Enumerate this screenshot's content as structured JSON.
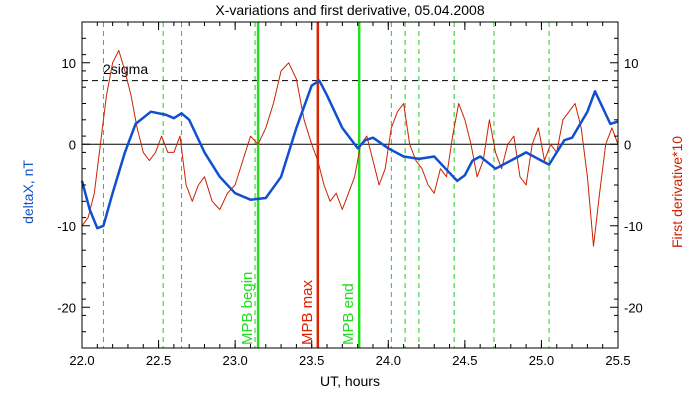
{
  "chart_data": {
    "type": "line",
    "title": "X-variations and first derivative, 05.04.2008",
    "xlabel": "UT, hours",
    "ylabel_left": "deltaX, nT",
    "ylabel_right": "First derivative*10",
    "xlim": [
      22.0,
      25.5
    ],
    "ylim": [
      -25,
      15
    ],
    "x_ticks": [
      22.0,
      22.5,
      23.0,
      23.5,
      24.0,
      24.5,
      25.0,
      25.5
    ],
    "x_tick_labels": [
      "22.0",
      "22.5",
      "23.0",
      "23.5",
      "24.0",
      "24.5",
      "25.0",
      "25.5"
    ],
    "y_ticks": [
      -20,
      -10,
      0,
      10
    ],
    "y_tick_labels": [
      "-20",
      "-10",
      "0",
      "10"
    ],
    "threshold": {
      "label": "2sigma",
      "value": 7.8
    },
    "zero_line": 0,
    "colors": {
      "deltaX": "#1050d0",
      "derivative": "#cc2200",
      "mpb_edge": "#22dd22",
      "mpb_max": "#dd2200",
      "dashed_green": "#22cc22",
      "axis": "#000000"
    },
    "markers": [
      {
        "label": "MPB begin",
        "x": 23.15,
        "color": "#22dd22"
      },
      {
        "label": "MPB max",
        "x": 23.54,
        "color": "#dd2200"
      },
      {
        "label": "MPB end",
        "x": 23.81,
        "color": "#22dd22"
      }
    ],
    "dashed_lines_x": [
      22.14,
      22.53,
      22.65,
      23.13,
      24.02,
      24.11,
      24.2,
      24.43,
      24.69,
      25.05
    ],
    "series": [
      {
        "key": "deltaX",
        "x": [
          22.0,
          22.05,
          22.1,
          22.14,
          22.2,
          22.28,
          22.35,
          22.45,
          22.55,
          22.6,
          22.65,
          22.7,
          22.8,
          22.9,
          23.0,
          23.1,
          23.2,
          23.3,
          23.4,
          23.5,
          23.55,
          23.6,
          23.7,
          23.8,
          23.85,
          23.9,
          24.0,
          24.1,
          24.2,
          24.3,
          24.4,
          24.45,
          24.5,
          24.55,
          24.6,
          24.7,
          24.8,
          24.9,
          25.0,
          25.05,
          25.1,
          25.15,
          25.2,
          25.3,
          25.35,
          25.4,
          25.45,
          25.5
        ],
        "y": [
          -4.5,
          -8,
          -10.3,
          -10,
          -6,
          -1,
          2.5,
          4,
          3.6,
          3.2,
          3.8,
          3,
          -1,
          -4,
          -6,
          -6.8,
          -6.6,
          -4,
          2,
          7.2,
          7.8,
          6,
          2,
          -0.5,
          0.5,
          0.8,
          -0.5,
          -1.5,
          -1.8,
          -1.5,
          -3.5,
          -4.5,
          -3.8,
          -2,
          -1.5,
          -3,
          -2,
          -1,
          -2,
          -2.5,
          -1,
          0.5,
          0.8,
          4,
          6.5,
          4.5,
          2.5,
          2.8
        ]
      },
      {
        "key": "derivative",
        "x": [
          22.0,
          22.04,
          22.08,
          22.12,
          22.16,
          22.2,
          22.24,
          22.28,
          22.32,
          22.36,
          22.4,
          22.44,
          22.48,
          22.52,
          22.56,
          22.6,
          22.64,
          22.68,
          22.72,
          22.76,
          22.8,
          22.85,
          22.9,
          22.95,
          23.0,
          23.05,
          23.1,
          23.15,
          23.2,
          23.25,
          23.3,
          23.35,
          23.4,
          23.45,
          23.5,
          23.54,
          23.58,
          23.62,
          23.66,
          23.7,
          23.74,
          23.78,
          23.82,
          23.86,
          23.9,
          23.94,
          23.98,
          24.02,
          24.06,
          24.1,
          24.14,
          24.18,
          24.22,
          24.26,
          24.3,
          24.34,
          24.38,
          24.42,
          24.46,
          24.5,
          24.54,
          24.58,
          24.62,
          24.66,
          24.7,
          24.74,
          24.78,
          24.82,
          24.86,
          24.9,
          24.94,
          24.98,
          25.02,
          25.06,
          25.1,
          25.14,
          25.18,
          25.22,
          25.26,
          25.3,
          25.34,
          25.38,
          25.42,
          25.46,
          25.5
        ],
        "y": [
          -10,
          -9,
          -6,
          0,
          6,
          10,
          11.5,
          9,
          6,
          2,
          -1,
          -2,
          -1,
          1,
          -1,
          -1,
          1,
          -5,
          -7,
          -5,
          -4,
          -7,
          -8,
          -6,
          -5,
          -2,
          1,
          0,
          2,
          5,
          9,
          10,
          8,
          3,
          0,
          -2,
          -5,
          -7,
          -6,
          -8,
          -6,
          -4,
          0,
          1,
          -2,
          -5,
          -3,
          2,
          4,
          5,
          0,
          -2,
          -3,
          -5,
          -6,
          -3,
          -4,
          1,
          5,
          3,
          0,
          -4,
          -2,
          3,
          -1,
          -3,
          0,
          1,
          -4,
          -5,
          0,
          2,
          -2,
          0,
          -1,
          3,
          4,
          5,
          2,
          -4,
          -12.5,
          -6,
          0,
          2,
          0
        ]
      }
    ]
  }
}
